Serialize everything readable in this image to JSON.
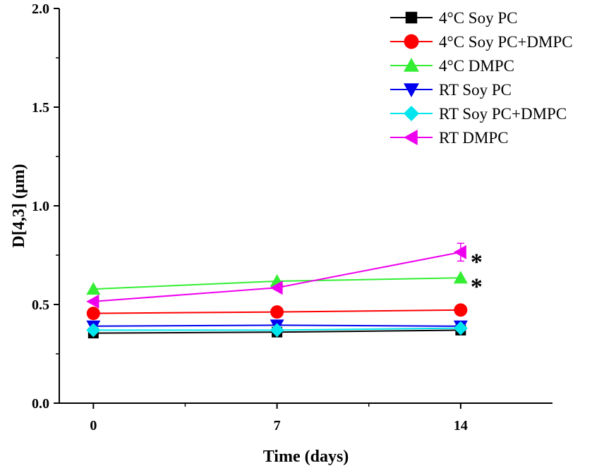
{
  "chart_data": {
    "type": "line",
    "title": "",
    "xlabel": "Time (days)",
    "ylabel": "D[4,3] (μm)",
    "x": [
      0,
      7,
      14
    ],
    "x_tick_labels": [
      "0",
      "7",
      "14"
    ],
    "xlim": [
      -1.3,
      17.5
    ],
    "ylim": [
      0.0,
      2.0
    ],
    "y_ticks": [
      0.0,
      0.5,
      1.0,
      1.5,
      2.0
    ],
    "y_tick_labels": [
      "0.0",
      "0.5",
      "1.0",
      "1.5",
      "2.0"
    ],
    "grid": false,
    "legend_position": "top-right",
    "series": [
      {
        "name": "4°C Soy PC",
        "color": "#000000",
        "marker": "square",
        "values": [
          0.355,
          0.36,
          0.37
        ]
      },
      {
        "name": "4°C Soy PC+DMPC",
        "color": "#ff0000",
        "marker": "circle",
        "values": [
          0.455,
          0.462,
          0.472
        ]
      },
      {
        "name": "4°C DMPC",
        "color": "#33ee33",
        "marker": "triangle-up",
        "values": [
          0.578,
          0.618,
          0.635
        ]
      },
      {
        "name": "RT Soy PC",
        "color": "#0000ee",
        "marker": "triangle-down",
        "values": [
          0.39,
          0.395,
          0.39
        ]
      },
      {
        "name": "RT Soy PC+DMPC",
        "color": "#00e5ee",
        "marker": "diamond",
        "values": [
          0.37,
          0.37,
          0.38
        ]
      },
      {
        "name": "RT DMPC",
        "color": "#ee00ee",
        "marker": "triangle-left",
        "values": [
          0.515,
          0.585,
          0.765
        ]
      }
    ],
    "annotations": [
      {
        "text": "*",
        "x": 14,
        "y": 0.755
      },
      {
        "text": "*",
        "x": 14,
        "y": 0.63
      }
    ]
  }
}
